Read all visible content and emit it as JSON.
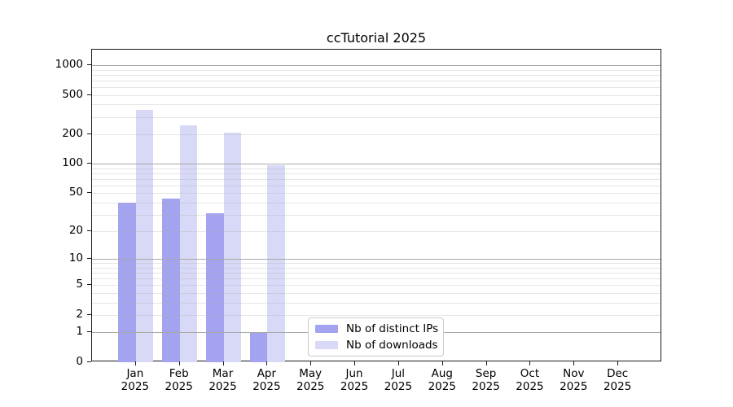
{
  "title": "ccTutorial 2025",
  "legend": {
    "items": [
      {
        "label": "Nb of distinct IPs",
        "color": "#a3a3f0"
      },
      {
        "label": "Nb of downloads",
        "color": "#d8d8f7"
      }
    ]
  },
  "chart_data": {
    "type": "bar",
    "title": "ccTutorial 2025",
    "categories": [
      "Jan 2025",
      "Feb 2025",
      "Mar 2025",
      "Apr 2025",
      "May 2025",
      "Jun 2025",
      "Jul 2025",
      "Aug 2025",
      "Sep 2025",
      "Oct 2025",
      "Nov 2025",
      "Dec 2025"
    ],
    "series": [
      {
        "name": "Nb of distinct IPs",
        "color": "#a3a3f0",
        "values": [
          40,
          44,
          31,
          1,
          0,
          0,
          0,
          0,
          0,
          0,
          0,
          0
        ]
      },
      {
        "name": "Nb of downloads",
        "color": "#d8d8f7",
        "values": [
          355,
          245,
          208,
          97,
          0,
          0,
          0,
          0,
          0,
          0,
          0,
          0
        ]
      }
    ],
    "xlabel": "",
    "ylabel": "",
    "yscale": "log10(1+x)",
    "ylim": [
      0,
      1435
    ],
    "yticks": [
      0,
      1,
      2,
      5,
      10,
      20,
      50,
      100,
      200,
      500,
      1000
    ],
    "grid": {
      "major_at": [
        1,
        10,
        100,
        1000
      ],
      "minor_decades": [
        1,
        10,
        100
      ],
      "visible": true
    },
    "legend_position": "lower center",
    "colors": {
      "background": "#ffffff",
      "spine": "#1a1a1a",
      "grid_major": "#a8a8a8",
      "grid_minor": "#b0b0b0",
      "tick_text": "#000000"
    }
  }
}
